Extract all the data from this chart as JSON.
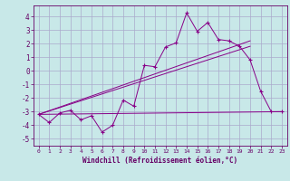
{
  "title": "",
  "xlabel": "Windchill (Refroidissement éolien,°C)",
  "ylabel": "",
  "background_color": "#c8e8e8",
  "grid_color": "#aaaacc",
  "line_color": "#880088",
  "text_color": "#660066",
  "xlim": [
    -0.5,
    23.5
  ],
  "ylim": [
    -5.5,
    4.8
  ],
  "xticks": [
    0,
    1,
    2,
    3,
    4,
    5,
    6,
    7,
    8,
    9,
    10,
    11,
    12,
    13,
    14,
    15,
    16,
    17,
    18,
    19,
    20,
    21,
    22,
    23
  ],
  "yticks": [
    -5,
    -4,
    -3,
    -2,
    -1,
    0,
    1,
    2,
    3,
    4
  ],
  "data_x": [
    0,
    1,
    2,
    3,
    4,
    5,
    6,
    7,
    8,
    9,
    10,
    11,
    12,
    13,
    14,
    15,
    16,
    17,
    18,
    19,
    20,
    21,
    22,
    23
  ],
  "data_y": [
    -3.2,
    -3.8,
    -3.1,
    -2.9,
    -3.6,
    -3.3,
    -4.5,
    -4.0,
    -2.15,
    -2.6,
    0.4,
    0.3,
    1.75,
    2.05,
    4.25,
    2.9,
    3.55,
    2.3,
    2.2,
    1.8,
    0.8,
    -1.5,
    -3.0,
    -3.0
  ],
  "line1_x": [
    0,
    20
  ],
  "line1_y": [
    -3.2,
    1.8
  ],
  "line2_x": [
    0,
    20
  ],
  "line2_y": [
    -3.2,
    2.2
  ],
  "line3_x": [
    0,
    23
  ],
  "line3_y": [
    -3.2,
    -3.0
  ]
}
